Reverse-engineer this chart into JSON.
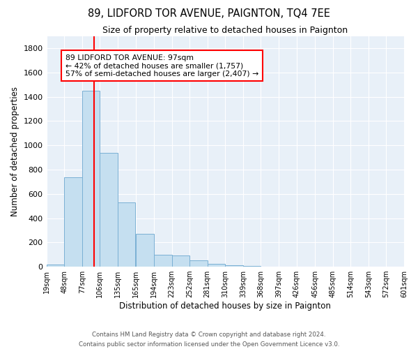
{
  "title": "89, LIDFORD TOR AVENUE, PAIGNTON, TQ4 7EE",
  "subtitle": "Size of property relative to detached houses in Paignton",
  "xlabel": "Distribution of detached houses by size in Paignton",
  "ylabel": "Number of detached properties",
  "bar_color": "#c5dff0",
  "bar_edge_color": "#7ab0d4",
  "background_color": "#e8f0f8",
  "grid_color": "#ffffff",
  "vline_x": 97,
  "vline_color": "red",
  "annotation_line1": "89 LIDFORD TOR AVENUE: 97sqm",
  "annotation_line2": "← 42% of detached houses are smaller (1,757)",
  "annotation_line3": "57% of semi-detached houses are larger (2,407) →",
  "annotation_box_edge": "red",
  "bin_edges": [
    19,
    48,
    77,
    106,
    135,
    165,
    194,
    223,
    252,
    281,
    310,
    339,
    368,
    397,
    426,
    456,
    485,
    514,
    543,
    572,
    601
  ],
  "bin_counts": [
    20,
    735,
    1450,
    935,
    530,
    270,
    100,
    90,
    50,
    25,
    10,
    5,
    3,
    2,
    1,
    1,
    0,
    0,
    0,
    0
  ],
  "ylim": [
    0,
    1900
  ],
  "yticks": [
    0,
    200,
    400,
    600,
    800,
    1000,
    1200,
    1400,
    1600,
    1800
  ],
  "footer_text": "Contains HM Land Registry data © Crown copyright and database right 2024.\nContains public sector information licensed under the Open Government Licence v3.0.",
  "tick_labels": [
    "19sqm",
    "48sqm",
    "77sqm",
    "106sqm",
    "135sqm",
    "165sqm",
    "194sqm",
    "223sqm",
    "252sqm",
    "281sqm",
    "310sqm",
    "339sqm",
    "368sqm",
    "397sqm",
    "426sqm",
    "456sqm",
    "485sqm",
    "514sqm",
    "543sqm",
    "572sqm",
    "601sqm"
  ],
  "figwidth": 6.0,
  "figheight": 5.0,
  "dpi": 100
}
